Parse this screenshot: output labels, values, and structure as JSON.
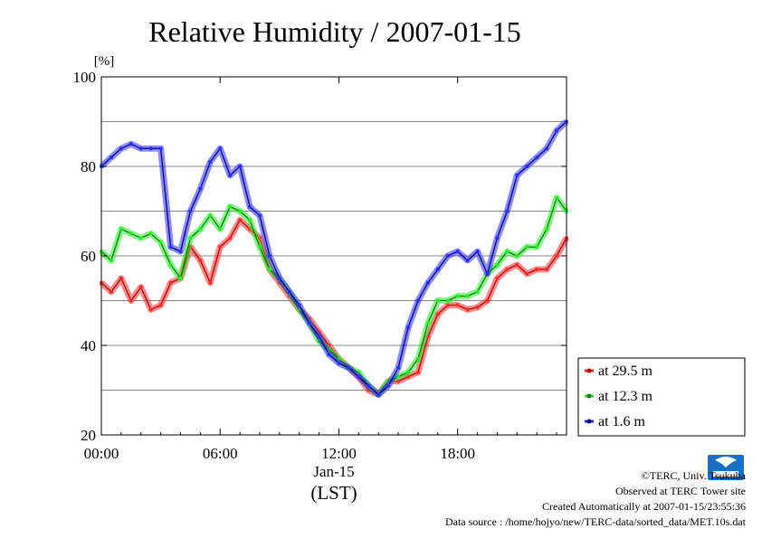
{
  "chart_data": {
    "type": "line",
    "title": "Relative Humidity / 2007-01-15",
    "ylabel": "[%]",
    "xlabel_date": "Jan-15",
    "xlabel_tz": "(LST)",
    "x_ticks": [
      "00:00",
      "06:00",
      "12:00",
      "18:00"
    ],
    "y_ticks": [
      20,
      40,
      60,
      80,
      100
    ],
    "ylim": [
      20,
      100
    ],
    "xlim_hours": [
      0,
      23.5
    ],
    "grid": true,
    "legend_position": "right",
    "x_hours": [
      0,
      0.5,
      1,
      1.5,
      2,
      2.5,
      3,
      3.5,
      4,
      4.5,
      5,
      5.5,
      6,
      6.5,
      7,
      7.5,
      8,
      8.5,
      9,
      9.5,
      10,
      10.5,
      11,
      11.5,
      12,
      12.5,
      13,
      13.5,
      14,
      14.5,
      15,
      15.5,
      16,
      16.5,
      17,
      17.5,
      18,
      18.5,
      19,
      19.5,
      20,
      20.5,
      21,
      21.5,
      22,
      22.5,
      23,
      23.5
    ],
    "series": [
      {
        "name": "at 29.5 m",
        "color": "#ff2a2a",
        "values": [
          54,
          52,
          55,
          50,
          53,
          48,
          49,
          54,
          55,
          62,
          59,
          54,
          62,
          64,
          68,
          66,
          64,
          57,
          54,
          51,
          48,
          46,
          43,
          40,
          37,
          35,
          33,
          30,
          29,
          32,
          32,
          33,
          34,
          42,
          47,
          49,
          49,
          48,
          48.5,
          50,
          55,
          57,
          58,
          56,
          57,
          57,
          60,
          64
        ]
      },
      {
        "name": "at 12.3 m",
        "color": "#22ee22",
        "values": [
          61,
          59,
          66,
          65,
          64,
          65,
          63,
          58,
          55,
          64,
          66,
          69,
          66,
          71,
          70,
          68,
          62,
          57,
          55,
          52,
          48,
          45,
          41,
          39,
          37,
          35,
          34,
          31,
          29,
          32,
          33,
          34,
          37,
          45,
          50,
          50,
          51,
          51,
          52,
          56,
          58,
          61,
          60,
          62,
          62,
          66,
          73,
          70
        ]
      },
      {
        "name": "at 1.6 m",
        "color": "#2b2bff",
        "values": [
          80,
          82,
          84,
          85,
          84,
          84,
          84,
          62,
          61,
          70,
          75,
          81,
          84,
          78,
          80,
          71,
          69,
          60,
          55,
          52,
          49,
          45,
          42,
          38,
          36,
          35,
          33,
          31,
          29,
          31,
          35,
          44,
          50,
          54,
          57,
          60,
          61,
          59,
          61,
          56,
          64,
          70,
          78,
          80,
          82,
          84,
          88,
          90
        ]
      }
    ]
  },
  "footer": {
    "copyright": "©TERC, Univ. Tsukuba",
    "observed": "Observed at TERC Tower site",
    "created": "Created Automatically at 2007-01-15/23:55:36",
    "source": "Data source : /home/hojyo/new/TERC-data/sorted_data/MET.10s.dat"
  },
  "logo": {
    "label": "TERC",
    "icon": "terc-logo-icon"
  }
}
